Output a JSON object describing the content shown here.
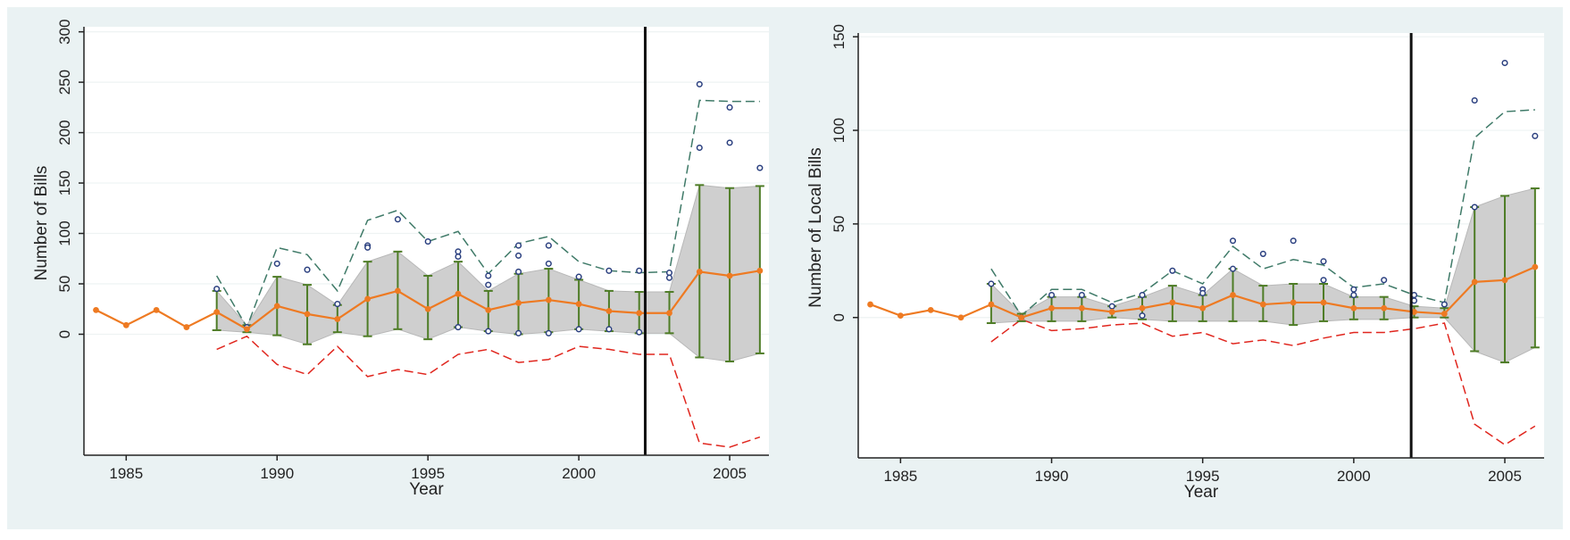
{
  "chart_data": [
    {
      "type": "line",
      "title": "",
      "xlabel": "Year",
      "ylabel": "Number of Bills",
      "xlim": [
        1983.6,
        2006.3
      ],
      "ylim": [
        -120,
        305
      ],
      "x_ticks": [
        1985,
        1990,
        1995,
        2000,
        2005
      ],
      "y_ticks": [
        0,
        50,
        100,
        150,
        200,
        250,
        300
      ],
      "x_tick_labels": [
        "1985",
        "1990",
        "1995",
        "2000",
        "2005"
      ],
      "y_tick_labels": [
        "0",
        "50",
        "100",
        "150",
        "200",
        "250",
        "300"
      ],
      "grid": "horizontal",
      "vline_x": 2002.2,
      "mean": {
        "x": [
          1984,
          1985,
          1986,
          1987,
          1988,
          1989,
          1990,
          1991,
          1992,
          1993,
          1994,
          1995,
          1996,
          1997,
          1998,
          1999,
          2000,
          2001,
          2002,
          2003,
          2004,
          2005,
          2006
        ],
        "y": [
          24,
          9,
          24,
          7,
          22,
          5,
          28,
          20,
          15,
          35,
          43,
          25,
          40,
          24,
          31,
          34,
          30,
          23,
          21,
          21,
          62,
          58,
          63
        ]
      },
      "band": {
        "x": [
          1988,
          1989,
          1990,
          1991,
          1992,
          1993,
          1994,
          1995,
          1996,
          1997,
          1998,
          1999,
          2000,
          2001,
          2002,
          2003,
          2004,
          2005,
          2006
        ],
        "lower": [
          4,
          2,
          -1,
          -10,
          2,
          -2,
          5,
          -5,
          7,
          3,
          0,
          2,
          5,
          3,
          1,
          1,
          -23,
          -27,
          -19
        ],
        "upper": [
          43,
          9,
          57,
          49,
          29,
          72,
          82,
          58,
          72,
          43,
          60,
          65,
          54,
          43,
          42,
          42,
          148,
          145,
          147
        ]
      },
      "upper_dashed": {
        "x": [
          1988,
          1989,
          1990,
          1991,
          1992,
          1993,
          1994,
          1995,
          1996,
          1997,
          1998,
          1999,
          2000,
          2001,
          2002,
          2003,
          2004,
          2005,
          2006
        ],
        "y": [
          58,
          7,
          86,
          79,
          43,
          113,
          123,
          92,
          102,
          60,
          90,
          97,
          72,
          63,
          61,
          62,
          232,
          231,
          231
        ]
      },
      "lower_dashed": {
        "x": [
          1988,
          1989,
          1990,
          1991,
          1992,
          1993,
          1994,
          1995,
          1996,
          1997,
          1998,
          1999,
          2000,
          2001,
          2002,
          2003,
          2004,
          2005,
          2006
        ],
        "y": [
          -15,
          -2,
          -30,
          -40,
          -12,
          -42,
          -35,
          -40,
          -20,
          -15,
          -28,
          -25,
          -12,
          -15,
          -20,
          -20,
          -108,
          -112,
          -102
        ]
      },
      "observations": {
        "x": [
          1988,
          1989,
          1990,
          1991,
          1992,
          1993,
          1993,
          1994,
          1995,
          1996,
          1996,
          1996,
          1997,
          1997,
          1997,
          1998,
          1998,
          1998,
          1998,
          1999,
          1999,
          1999,
          2000,
          2000,
          2001,
          2001,
          2002,
          2002,
          2003,
          2003,
          2004,
          2004,
          2005,
          2005,
          2006
        ],
        "y": [
          45,
          7,
          70,
          64,
          30,
          88,
          86,
          114,
          92,
          82,
          77,
          7,
          58,
          49,
          3,
          88,
          78,
          62,
          1,
          88,
          70,
          1,
          57,
          5,
          63,
          5,
          63,
          2,
          61,
          56,
          248,
          185,
          225,
          190,
          165
        ]
      }
    },
    {
      "type": "line",
      "title": "",
      "xlabel": "Year",
      "ylabel": "Number of Local Bills",
      "xlim": [
        1983.6,
        2006.3
      ],
      "ylim": [
        -75,
        152
      ],
      "x_ticks": [
        1985,
        1990,
        1995,
        2000,
        2005
      ],
      "y_ticks": [
        0,
        50,
        100,
        150
      ],
      "x_tick_labels": [
        "1985",
        "1990",
        "1995",
        "2000",
        "2005"
      ],
      "y_tick_labels": [
        "0",
        "50",
        "100",
        "150"
      ],
      "grid": "horizontal",
      "vline_x": 2001.9,
      "mean": {
        "x": [
          1984,
          1985,
          1986,
          1987,
          1988,
          1989,
          1990,
          1991,
          1992,
          1993,
          1994,
          1995,
          1996,
          1997,
          1998,
          1999,
          2000,
          2001,
          2002,
          2003,
          2004,
          2005,
          2006
        ],
        "y": [
          7,
          1,
          4,
          0,
          7,
          0,
          5,
          5,
          3,
          5,
          8,
          5,
          12,
          7,
          8,
          8,
          5,
          5,
          3,
          2,
          19,
          20,
          27
        ]
      },
      "band": {
        "x": [
          1988,
          1989,
          1990,
          1991,
          1992,
          1993,
          1994,
          1995,
          1996,
          1997,
          1998,
          1999,
          2000,
          2001,
          2002,
          2003,
          2004,
          2005,
          2006
        ],
        "lower": [
          -3,
          -2,
          -2,
          -2,
          0,
          -1,
          -2,
          -2,
          -2,
          -2,
          -4,
          -2,
          -1,
          -1,
          0,
          0,
          -18,
          -24,
          -16
        ],
        "upper": [
          18,
          2,
          11,
          11,
          6,
          11,
          17,
          12,
          26,
          17,
          18,
          18,
          11,
          11,
          6,
          5,
          59,
          65,
          69
        ]
      },
      "upper_dashed": {
        "x": [
          1988,
          1989,
          1990,
          1991,
          1992,
          1993,
          1994,
          1995,
          1996,
          1997,
          1998,
          1999,
          2000,
          2001,
          2002,
          2003,
          2004,
          2005,
          2006
        ],
        "y": [
          26,
          1,
          15,
          15,
          8,
          13,
          25,
          18,
          38,
          26,
          31,
          28,
          16,
          18,
          12,
          8,
          96,
          110,
          111
        ]
      },
      "lower_dashed": {
        "x": [
          1988,
          1989,
          1990,
          1991,
          1992,
          1993,
          1994,
          1995,
          1996,
          1997,
          1998,
          1999,
          2000,
          2001,
          2002,
          2003,
          2004,
          2005,
          2006
        ],
        "y": [
          -13,
          -1,
          -7,
          -6,
          -4,
          -3,
          -10,
          -8,
          -14,
          -12,
          -15,
          -11,
          -8,
          -8,
          -6,
          -3,
          -57,
          -68,
          -58
        ]
      },
      "observations": {
        "x": [
          1988,
          1989,
          1990,
          1991,
          1992,
          1993,
          1993,
          1994,
          1995,
          1995,
          1996,
          1996,
          1997,
          1998,
          1999,
          1999,
          2000,
          2000,
          2001,
          2002,
          2002,
          2003,
          2004,
          2004,
          2005,
          2006
        ],
        "y": [
          18,
          0,
          12,
          12,
          6,
          12,
          1,
          25,
          15,
          13,
          41,
          26,
          34,
          41,
          30,
          20,
          15,
          12,
          20,
          12,
          9,
          7,
          116,
          59,
          136,
          97
        ]
      }
    }
  ]
}
